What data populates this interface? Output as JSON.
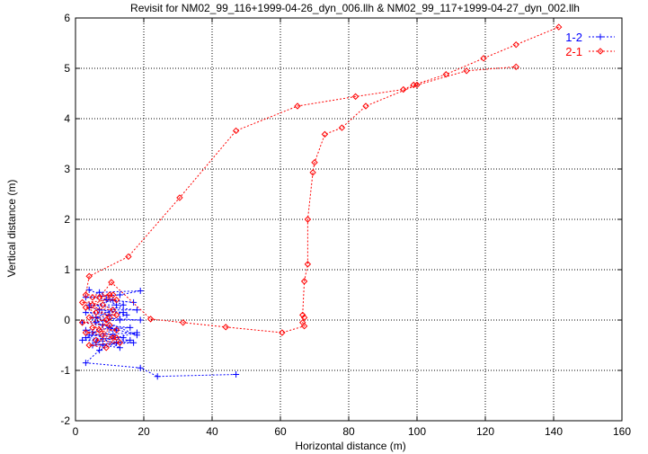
{
  "chart_data": {
    "type": "line",
    "title": "Revisit for NM02_99_116+1999-04-26_dyn_006.llh & NM02_99_117+1999-04-27_dyn_002.llh",
    "xlabel": "Horizontal distance (m)",
    "ylabel": "Vertical distance (m)",
    "xlim": [
      0,
      160
    ],
    "ylim": [
      -2,
      6
    ],
    "xticks": [
      "0",
      "20",
      "40",
      "60",
      "80",
      "100",
      "120",
      "140",
      "160"
    ],
    "yticks": [
      "-2",
      "-1",
      "0",
      "1",
      "2",
      "3",
      "4",
      "5",
      "6"
    ],
    "grid": true,
    "legend_position": "top-right",
    "series": [
      {
        "name": "1-2",
        "color": "#0000ff",
        "marker": "plus",
        "points": [
          [
            47,
            -1.08
          ],
          [
            24,
            -1.12
          ],
          [
            19,
            -0.95
          ],
          [
            3,
            -0.85
          ],
          [
            7,
            -0.6
          ],
          [
            12,
            -0.45
          ],
          [
            5,
            -0.5
          ],
          [
            17,
            -0.45
          ],
          [
            2,
            -0.4
          ],
          [
            14,
            -0.35
          ],
          [
            4,
            -0.3
          ],
          [
            18,
            -0.25
          ],
          [
            6,
            -0.45
          ],
          [
            11,
            -0.3
          ],
          [
            3,
            -0.2
          ],
          [
            16,
            -0.15
          ],
          [
            8,
            -0.1
          ],
          [
            2,
            -0.05
          ],
          [
            13,
            0.0
          ],
          [
            19,
            0.0
          ],
          [
            5,
            0.05
          ],
          [
            10,
            0.1
          ],
          [
            3,
            0.15
          ],
          [
            14,
            0.15
          ],
          [
            7,
            0.2
          ],
          [
            18,
            0.2
          ],
          [
            4,
            0.3
          ],
          [
            12,
            0.3
          ],
          [
            9,
            0.4
          ],
          [
            17,
            0.35
          ],
          [
            3,
            0.45
          ],
          [
            13,
            0.5
          ],
          [
            19,
            0.58
          ],
          [
            7,
            0.55
          ],
          [
            11,
            0.4
          ],
          [
            4,
            0.25
          ],
          [
            15,
            0.1
          ],
          [
            6,
            -0.05
          ],
          [
            12,
            -0.2
          ],
          [
            3,
            -0.35
          ],
          [
            16,
            -0.4
          ],
          [
            8,
            -0.5
          ],
          [
            13,
            -0.55
          ],
          [
            5,
            -0.25
          ],
          [
            10,
            -0.15
          ],
          [
            18,
            -0.3
          ],
          [
            6,
            0.05
          ],
          [
            14,
            0.3
          ],
          [
            4,
            0.6
          ]
        ]
      },
      {
        "name": "2-1",
        "color": "#ff0000",
        "marker": "diamond",
        "points": [
          [
            141.5,
            5.82
          ],
          [
            129,
            5.47
          ],
          [
            119.5,
            5.2
          ],
          [
            108.5,
            4.88
          ],
          [
            99,
            4.67
          ],
          [
            96,
            4.58
          ],
          [
            82,
            4.44
          ],
          [
            65,
            4.25
          ],
          [
            47,
            3.76
          ],
          [
            30.5,
            2.43
          ],
          [
            15.5,
            1.26
          ],
          [
            4,
            0.87
          ],
          [
            3,
            0.5
          ],
          [
            10,
            0.5
          ],
          [
            5,
            0.45
          ],
          [
            12,
            0.4
          ],
          [
            2,
            0.35
          ],
          [
            8,
            0.3
          ],
          [
            11,
            0.2
          ],
          [
            3,
            0.25
          ],
          [
            6,
            0.15
          ],
          [
            12,
            0.1
          ],
          [
            4,
            0.05
          ],
          [
            9,
            0.0
          ],
          [
            2,
            -0.05
          ],
          [
            10,
            -0.1
          ],
          [
            5,
            -0.15
          ],
          [
            12,
            -0.2
          ],
          [
            3,
            -0.25
          ],
          [
            8,
            -0.3
          ],
          [
            11,
            -0.35
          ],
          [
            6,
            -0.4
          ],
          [
            13,
            -0.45
          ],
          [
            4,
            -0.5
          ],
          [
            9,
            -0.55
          ],
          [
            12,
            -0.35
          ],
          [
            7,
            -0.2
          ],
          [
            10,
            0.05
          ],
          [
            5,
            0.3
          ],
          [
            11,
            0.5
          ],
          [
            7,
            0.45
          ],
          [
            10.5,
            0.75
          ],
          [
            22,
            0.02
          ],
          [
            31.5,
            -0.05
          ],
          [
            44,
            -0.14
          ],
          [
            60.5,
            -0.25
          ],
          [
            67,
            -0.12
          ],
          [
            66.5,
            -0.05
          ],
          [
            67,
            0.05
          ],
          [
            66.5,
            0.1
          ],
          [
            67,
            0.77
          ],
          [
            68,
            1.11
          ],
          [
            68,
            2.0
          ],
          [
            69.5,
            2.93
          ],
          [
            70,
            3.13
          ],
          [
            73,
            3.69
          ],
          [
            78,
            3.82
          ],
          [
            85,
            4.25
          ],
          [
            100,
            4.67
          ],
          [
            114.5,
            4.95
          ],
          [
            129,
            5.03
          ]
        ]
      }
    ]
  }
}
